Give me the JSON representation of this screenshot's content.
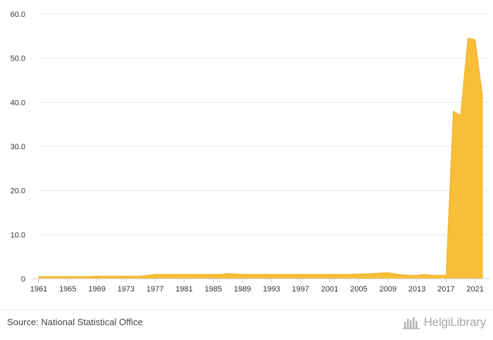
{
  "colors": {
    "area_fill": "#F9BE38",
    "area_stroke": "#EDB02A"
  },
  "chart_data": {
    "type": "area",
    "title": "",
    "xlabel": "",
    "ylabel": "",
    "x": [
      1961,
      1962,
      1963,
      1964,
      1965,
      1966,
      1967,
      1968,
      1969,
      1970,
      1971,
      1972,
      1973,
      1974,
      1975,
      1976,
      1977,
      1978,
      1979,
      1980,
      1981,
      1982,
      1983,
      1984,
      1985,
      1986,
      1987,
      1988,
      1989,
      1990,
      1991,
      1992,
      1993,
      1994,
      1995,
      1996,
      1997,
      1998,
      1999,
      2000,
      2001,
      2002,
      2003,
      2004,
      2005,
      2006,
      2007,
      2008,
      2009,
      2010,
      2011,
      2012,
      2013,
      2014,
      2015,
      2016,
      2017,
      2018,
      2019,
      2020,
      2021,
      2022
    ],
    "series": [
      {
        "values": [
          0.5,
          0.5,
          0.5,
          0.5,
          0.5,
          0.5,
          0.5,
          0.5,
          0.6,
          0.6,
          0.6,
          0.6,
          0.6,
          0.6,
          0.6,
          0.8,
          1.0,
          1.0,
          1.0,
          1.0,
          1.0,
          1.0,
          1.0,
          1.0,
          1.0,
          1.0,
          1.2,
          1.1,
          1.0,
          1.0,
          1.0,
          1.0,
          1.0,
          1.0,
          1.0,
          1.0,
          1.0,
          1.0,
          1.0,
          1.0,
          1.0,
          1.0,
          1.0,
          1.0,
          1.1,
          1.1,
          1.2,
          1.3,
          1.4,
          1.1,
          0.9,
          0.8,
          0.8,
          1.0,
          0.8,
          0.8,
          0.8,
          38.0,
          37.0,
          54.5,
          54.2,
          41.5
        ]
      }
    ],
    "ylim": [
      0,
      60
    ],
    "yticks": [
      0,
      10,
      20,
      30,
      40,
      50,
      60
    ],
    "ytick_labels": [
      "0",
      "10.0",
      "20.0",
      "30.0",
      "40.0",
      "50.0",
      "60.0"
    ],
    "xticks": [
      1961,
      1965,
      1969,
      1973,
      1977,
      1981,
      1985,
      1989,
      1993,
      1997,
      2001,
      2005,
      2009,
      2013,
      2017,
      2021
    ],
    "xtick_labels": [
      "1961",
      "1965",
      "1969",
      "1973",
      "1977",
      "1981",
      "1985",
      "1989",
      "1993",
      "1997",
      "2001",
      "2005",
      "2009",
      "2013",
      "2017",
      "2021"
    ],
    "grid": true,
    "legend": "none"
  },
  "footer": {
    "source": "Source: National Statistical Office",
    "logo_text": "HelgiLibrary"
  },
  "icons": {
    "logo": "helgi-library-logo-icon"
  }
}
